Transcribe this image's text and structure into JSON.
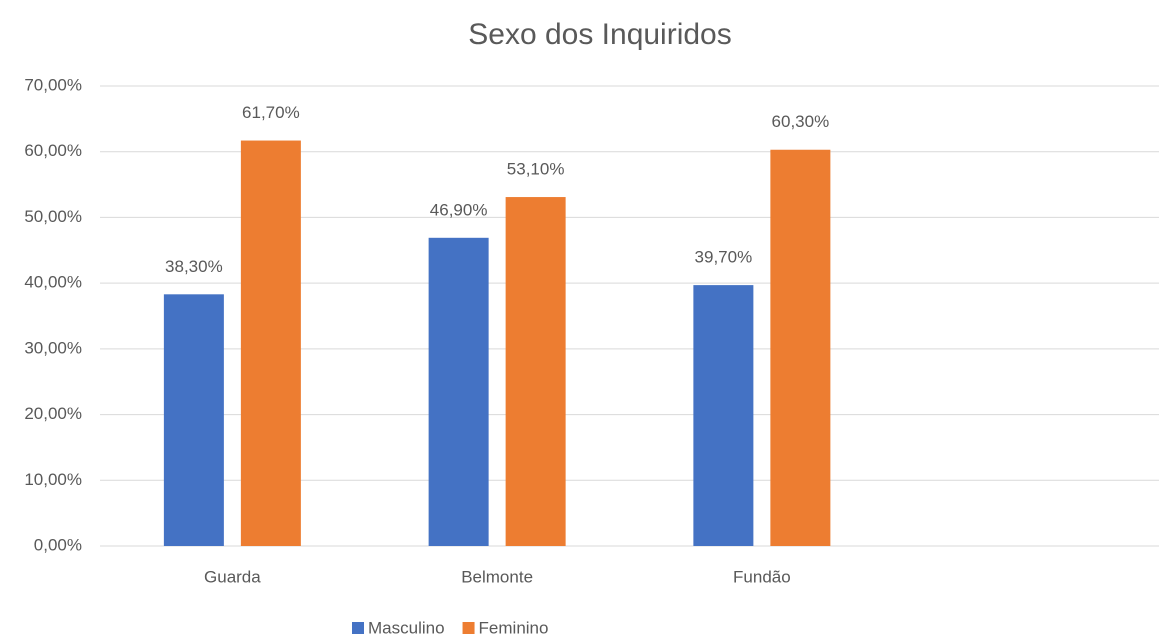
{
  "chart_data": {
    "type": "bar",
    "title": "Sexo dos Inquiridos",
    "categories": [
      "Guarda",
      "Belmonte",
      "Fundão",
      null
    ],
    "series": [
      {
        "name": "Masculino",
        "color": "#4472c4",
        "values": [
          38.3,
          46.9,
          39.7,
          null
        ],
        "value_labels": [
          "38,30%",
          "46,90%",
          "39,70%",
          null
        ]
      },
      {
        "name": "Feminino",
        "color": "#ed7d31",
        "values": [
          61.7,
          53.1,
          60.3,
          null
        ],
        "value_labels": [
          "61,70%",
          "53,10%",
          "60,30%",
          null
        ]
      }
    ],
    "ylim": [
      0,
      70
    ],
    "yticks": [
      {
        "value": 0,
        "label": "0,00%"
      },
      {
        "value": 10,
        "label": "10,00%"
      },
      {
        "value": 20,
        "label": "20,00%"
      },
      {
        "value": 30,
        "label": "30,00%"
      },
      {
        "value": 40,
        "label": "40,00%"
      },
      {
        "value": 50,
        "label": "50,00%"
      },
      {
        "value": 60,
        "label": "60,00%"
      },
      {
        "value": 70,
        "label": "70,00%"
      }
    ],
    "grid": true,
    "legend": "bottom"
  }
}
